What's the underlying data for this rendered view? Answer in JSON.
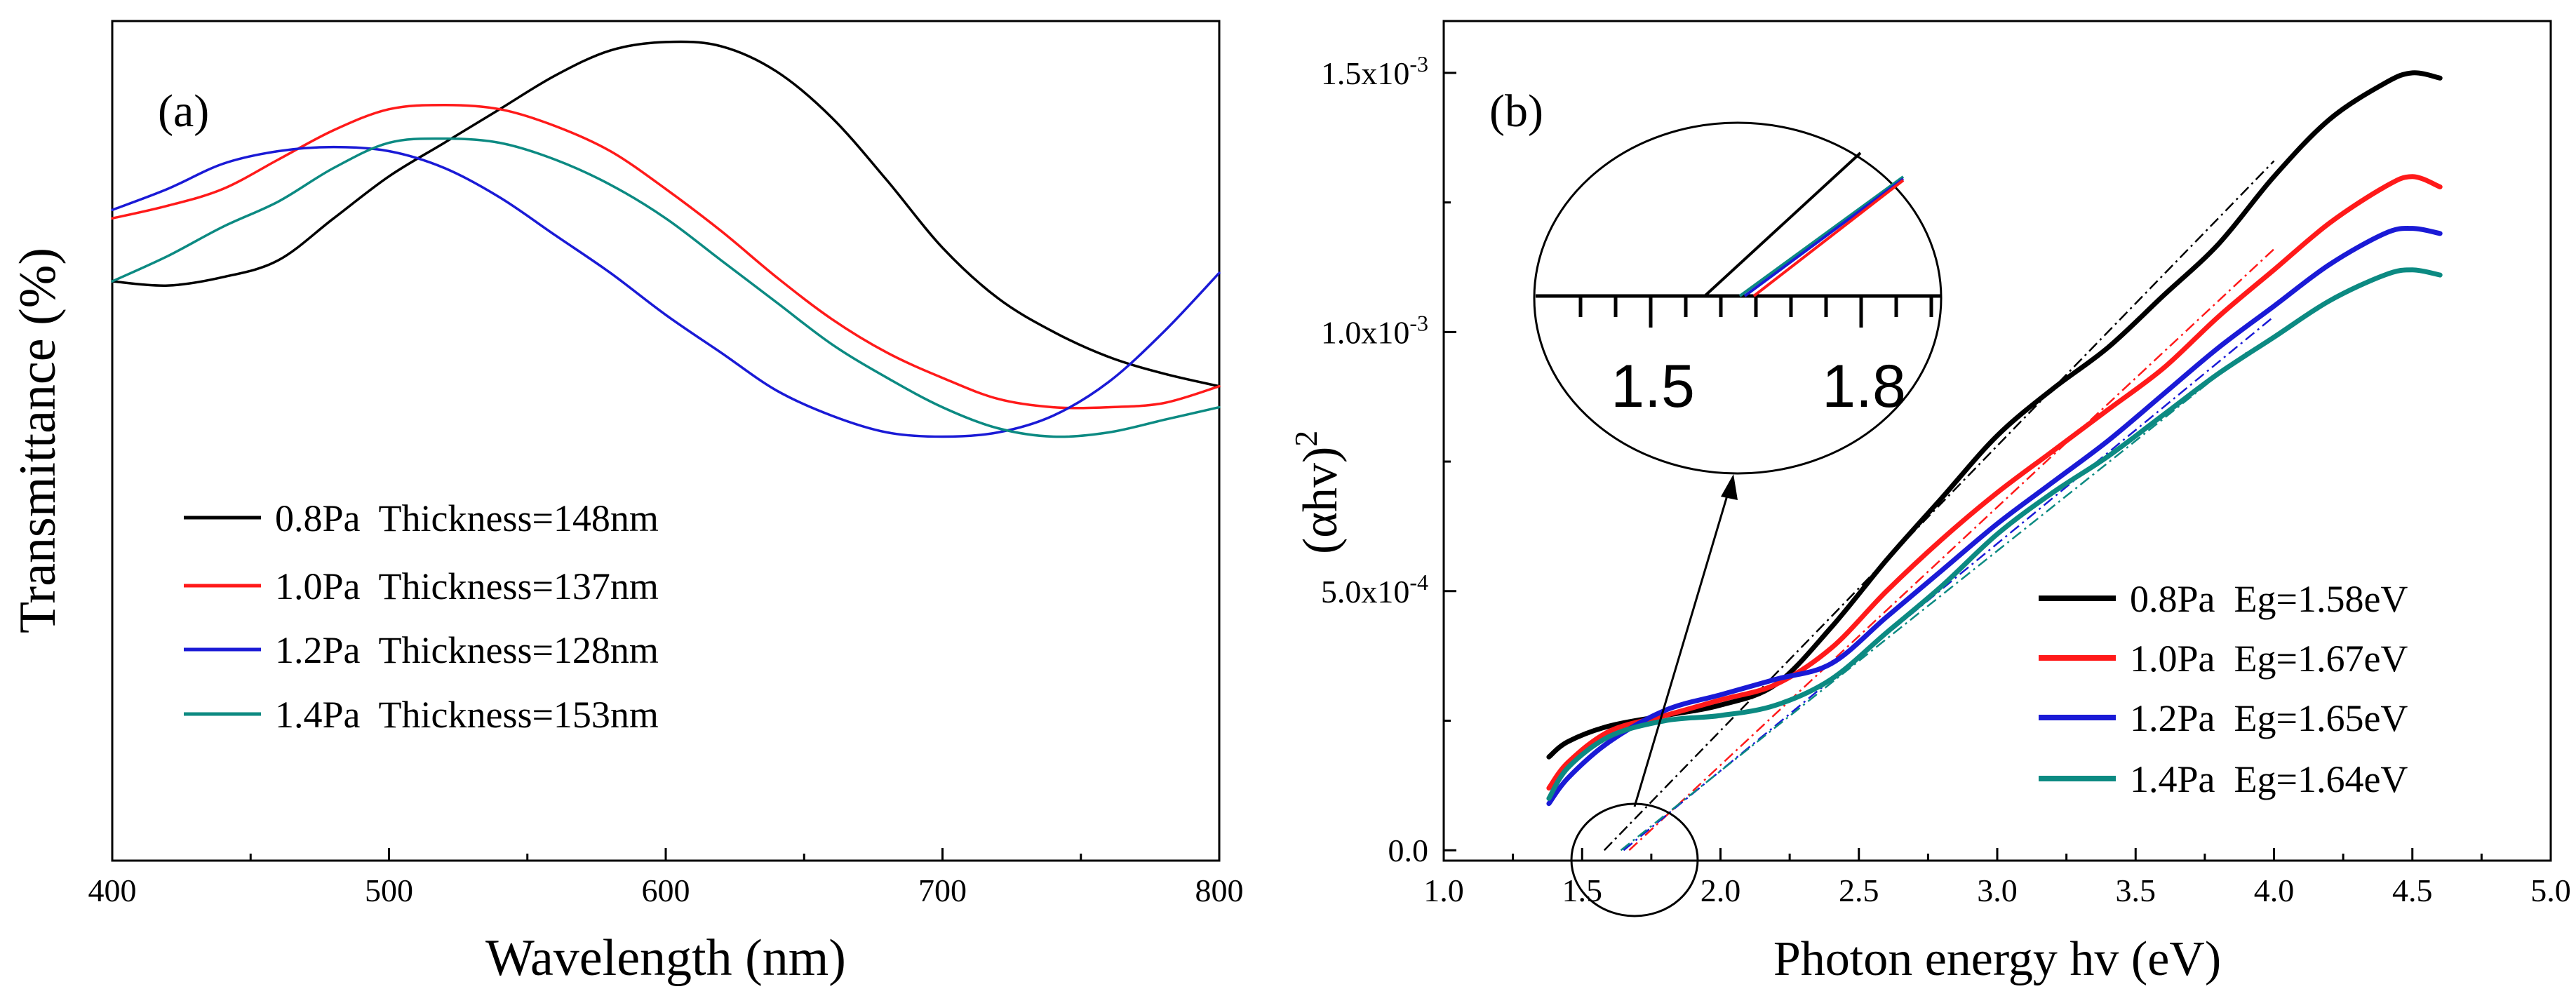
{
  "colors": {
    "p08": "#000000",
    "p10": "#ff1a1a",
    "p12": "#1a1ad6",
    "p14": "#0c8a82"
  },
  "chart_data": [
    {
      "panel": "(a)",
      "type": "line",
      "xlabel": "Wavelength (nm)",
      "ylabel": "Transmittance (%)",
      "xlim": [
        400,
        800
      ],
      "ylim": [
        0,
        100
      ],
      "xticks": [
        "400",
        "500",
        "600",
        "700",
        "800"
      ],
      "legend_position": "lower-left",
      "series": [
        {
          "name": "0.8Pa",
          "label": "0.8Pa  Thickness=148nm",
          "color": "#000000",
          "x": [
            400,
            420,
            440,
            460,
            480,
            500,
            520,
            540,
            560,
            580,
            600,
            620,
            640,
            660,
            680,
            700,
            720,
            740,
            760,
            780,
            800
          ],
          "y": [
            69.0,
            68.5,
            69.5,
            71.5,
            76.5,
            81.5,
            85.5,
            89.5,
            93.5,
            96.5,
            97.5,
            97.0,
            94.0,
            88.5,
            81.0,
            73.0,
            67.0,
            63.0,
            60.0,
            58.0,
            56.5
          ]
        },
        {
          "name": "1.0Pa",
          "label": "1.0Pa  Thickness=137nm",
          "color": "#ff1a1a",
          "x": [
            400,
            420,
            440,
            460,
            480,
            500,
            520,
            540,
            560,
            580,
            600,
            620,
            640,
            660,
            680,
            700,
            720,
            740,
            760,
            780,
            800
          ],
          "y": [
            76.5,
            78.0,
            80.0,
            83.5,
            87.0,
            89.5,
            90.0,
            89.5,
            87.5,
            84.5,
            80.0,
            75.0,
            69.5,
            64.5,
            60.5,
            57.5,
            55.0,
            54.0,
            54.0,
            54.5,
            56.5
          ]
        },
        {
          "name": "1.2Pa",
          "label": "1.2Pa  Thickness=128nm",
          "color": "#1a1ad6",
          "x": [
            400,
            420,
            440,
            460,
            480,
            500,
            520,
            540,
            560,
            580,
            600,
            620,
            640,
            660,
            680,
            700,
            720,
            740,
            760,
            780,
            800
          ],
          "y": [
            77.5,
            80.0,
            83.0,
            84.5,
            85.0,
            84.5,
            82.5,
            79.0,
            74.5,
            70.0,
            65.0,
            60.5,
            56.0,
            53.0,
            51.0,
            50.5,
            51.0,
            53.0,
            57.0,
            63.0,
            70.0
          ]
        },
        {
          "name": "1.4Pa",
          "label": "1.4Pa  Thickness=153nm",
          "color": "#0c8a82",
          "x": [
            400,
            420,
            440,
            460,
            480,
            500,
            520,
            540,
            560,
            580,
            600,
            620,
            640,
            660,
            680,
            700,
            720,
            740,
            760,
            780,
            800
          ],
          "y": [
            69.0,
            72.0,
            75.5,
            78.5,
            82.5,
            85.5,
            86.0,
            85.5,
            83.5,
            80.5,
            76.5,
            71.5,
            66.5,
            61.5,
            57.5,
            54.0,
            51.5,
            50.5,
            51.0,
            52.5,
            54.0
          ]
        }
      ]
    },
    {
      "panel": "(b)",
      "type": "line",
      "xlabel": "Photon energy hv (eV)",
      "ylabel": "(αhv)",
      "ylabel_superscript": "2",
      "xlim": [
        1.0,
        5.0
      ],
      "ylim": [
        -2e-05,
        0.0016
      ],
      "xticks": [
        "1.0",
        "1.5",
        "2.0",
        "2.5",
        "3.0",
        "3.5",
        "4.0",
        "4.5",
        "5.0"
      ],
      "yticks": [
        {
          "value": 0,
          "mantissa": "0.0",
          "exp": ""
        },
        {
          "value": 0.0005,
          "mantissa": "5.0x10",
          "exp": "-4"
        },
        {
          "value": 0.001,
          "mantissa": "1.0x10",
          "exp": "-3"
        },
        {
          "value": 0.0015,
          "mantissa": "1.5x10",
          "exp": "-3"
        }
      ],
      "legend_position": "lower-right",
      "series": [
        {
          "name": "0.8Pa",
          "label": "0.8Pa  Eg=1.58eV",
          "color": "#000000",
          "Eg": 1.58,
          "x": [
            1.38,
            1.45,
            1.6,
            1.8,
            2.0,
            2.2,
            2.4,
            2.6,
            2.8,
            3.0,
            3.2,
            3.4,
            3.6,
            3.8,
            4.0,
            4.2,
            4.4,
            4.5,
            4.6
          ],
          "y": [
            0.00018,
            0.00021,
            0.00024,
            0.00026,
            0.00028,
            0.00032,
            0.00043,
            0.00056,
            0.00068,
            0.0008,
            0.00089,
            0.00097,
            0.00107,
            0.00117,
            0.0013,
            0.00141,
            0.00148,
            0.0015,
            0.00149
          ]
        },
        {
          "name": "1.0Pa",
          "label": "1.0Pa  Eg=1.67eV",
          "color": "#ff1a1a",
          "Eg": 1.67,
          "x": [
            1.38,
            1.45,
            1.6,
            1.8,
            2.0,
            2.2,
            2.4,
            2.6,
            2.8,
            3.0,
            3.2,
            3.4,
            3.6,
            3.8,
            4.0,
            4.2,
            4.4,
            4.5,
            4.6
          ],
          "y": [
            0.00012,
            0.00017,
            0.00023,
            0.00026,
            0.00029,
            0.00032,
            0.00039,
            0.0005,
            0.0006,
            0.00069,
            0.00077,
            0.00085,
            0.00093,
            0.00103,
            0.00112,
            0.00121,
            0.00128,
            0.0013,
            0.00128
          ]
        },
        {
          "name": "1.2Pa",
          "label": "1.2Pa  Eg=1.65eV",
          "color": "#1a1ad6",
          "Eg": 1.65,
          "x": [
            1.38,
            1.45,
            1.6,
            1.8,
            2.0,
            2.2,
            2.4,
            2.6,
            2.8,
            3.0,
            3.2,
            3.4,
            3.6,
            3.8,
            4.0,
            4.2,
            4.4,
            4.5,
            4.6
          ],
          "y": [
            9e-05,
            0.00014,
            0.00021,
            0.00027,
            0.0003,
            0.00033,
            0.00036,
            0.00045,
            0.00054,
            0.00063,
            0.00071,
            0.00079,
            0.00088,
            0.00097,
            0.00105,
            0.00113,
            0.00119,
            0.0012,
            0.00119
          ]
        },
        {
          "name": "1.4Pa",
          "label": "1.4Pa  Eg=1.64eV",
          "color": "#0c8a82",
          "Eg": 1.64,
          "x": [
            1.38,
            1.45,
            1.6,
            1.8,
            2.0,
            2.2,
            2.4,
            2.6,
            2.8,
            3.0,
            3.2,
            3.4,
            3.6,
            3.8,
            4.0,
            4.2,
            4.4,
            4.5,
            4.6
          ],
          "y": [
            0.0001,
            0.00016,
            0.00022,
            0.00025,
            0.00026,
            0.00028,
            0.00033,
            0.00042,
            0.00051,
            0.00061,
            0.00069,
            0.00076,
            0.00084,
            0.00092,
            0.00099,
            0.00106,
            0.00111,
            0.00112,
            0.00111
          ]
        }
      ],
      "fit_lines": [
        {
          "name": "0.8Pa",
          "color": "#000000",
          "x": [
            1.58,
            4.0
          ],
          "y": [
            0,
            0.00133
          ]
        },
        {
          "name": "1.0Pa",
          "color": "#ff1a1a",
          "x": [
            1.67,
            4.0
          ],
          "y": [
            0,
            0.00116
          ]
        },
        {
          "name": "1.2Pa",
          "color": "#1a1ad6",
          "x": [
            1.65,
            4.0
          ],
          "y": [
            0,
            0.00103
          ]
        },
        {
          "name": "1.4Pa",
          "color": "#0c8a82",
          "x": [
            1.64,
            3.9
          ],
          "y": [
            0,
            0.00096
          ]
        }
      ],
      "inset": {
        "ticks": [
          "1.5",
          "1.8"
        ],
        "note": "magnified view of the fitted line intercepts near 1.58-1.67 eV"
      }
    }
  ]
}
